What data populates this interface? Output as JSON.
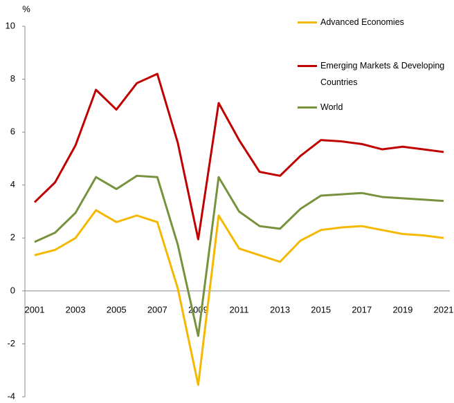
{
  "chart_data": {
    "type": "line",
    "y_unit_label": "%",
    "categories": [
      "2001",
      null,
      "2003",
      null,
      "2005",
      null,
      "2007",
      null,
      "2009",
      null,
      "2011",
      null,
      "2013",
      null,
      "2015",
      null,
      "2017",
      null,
      "2019",
      null,
      "2021"
    ],
    "series": [
      {
        "name": "Advanced Economies",
        "color": "#f5b800",
        "values": [
          1.35,
          1.55,
          2.0,
          3.05,
          2.6,
          2.85,
          2.6,
          0.1,
          -3.55,
          2.85,
          1.6,
          1.35,
          1.1,
          1.9,
          2.3,
          2.4,
          2.45,
          2.3,
          2.15,
          2.1,
          2.0
        ]
      },
      {
        "name": "Emerging Markets & Developing Countries",
        "color": "#c00000",
        "values": [
          3.35,
          4.1,
          5.5,
          7.6,
          6.85,
          7.85,
          8.2,
          5.6,
          1.95,
          7.1,
          5.7,
          4.5,
          4.35,
          5.1,
          5.7,
          5.65,
          5.55,
          5.35,
          5.45,
          5.35,
          5.25
        ]
      },
      {
        "name": "World",
        "color": "#76923c",
        "values": [
          1.85,
          2.2,
          2.95,
          4.3,
          3.85,
          4.35,
          4.3,
          1.75,
          -1.7,
          4.3,
          3.0,
          2.45,
          2.35,
          3.1,
          3.6,
          3.65,
          3.7,
          3.55,
          3.5,
          3.45,
          3.4
        ]
      }
    ],
    "ylim": [
      -4,
      10
    ],
    "yticks": [
      -4,
      -2,
      0,
      2,
      4,
      6,
      8,
      10
    ],
    "grid": false,
    "legend": "top-right"
  }
}
